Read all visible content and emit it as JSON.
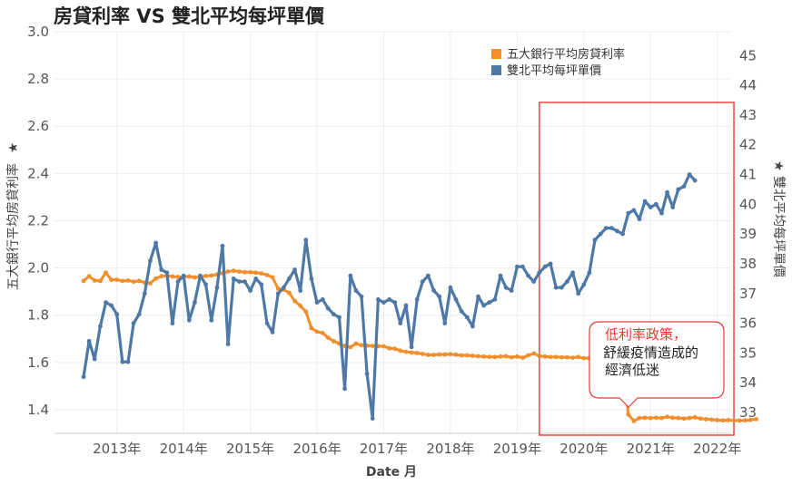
{
  "chart_data": {
    "type": "line",
    "title": "房貸利率 VS 雙北平均每坪單價",
    "xlabel": "Date 月",
    "ylabel_left": "五大銀行平均房貸利率",
    "ylabel_right": "雙北平均每坪單價",
    "ylim_left": [
      1.3,
      3.0
    ],
    "ylim_right": [
      32.3,
      45.8
    ],
    "yticks_left": [
      "3.0",
      "2.8",
      "2.6",
      "2.4",
      "2.2",
      "2.0",
      "1.8",
      "1.6",
      "1.4"
    ],
    "yticks_right": [
      "45",
      "44",
      "43",
      "42",
      "41",
      "40",
      "39",
      "38",
      "37",
      "36",
      "35",
      "34",
      "33"
    ],
    "x_start_month": "2013-01",
    "xticks": [
      {
        "month": "2013-07",
        "label": "2013年"
      },
      {
        "month": "2014-07",
        "label": "2014年"
      },
      {
        "month": "2015-07",
        "label": "2015年"
      },
      {
        "month": "2016-07",
        "label": "2016年"
      },
      {
        "month": "2017-07",
        "label": "2017年"
      },
      {
        "month": "2018-07",
        "label": "2018年"
      },
      {
        "month": "2019-07",
        "label": "2019年"
      },
      {
        "month": "2020-07",
        "label": "2020年"
      },
      {
        "month": "2021-07",
        "label": "2021年"
      },
      {
        "month": "2022-07",
        "label": "2022年"
      }
    ],
    "legend_position": "top-right",
    "grid": true,
    "series": [
      {
        "name": "五大銀行平均房貸利率",
        "axis": "left",
        "color": "#f28e2b",
        "values": [
          1.945,
          1.965,
          1.947,
          1.945,
          1.98,
          1.95,
          1.95,
          1.945,
          1.947,
          1.942,
          1.945,
          1.938,
          1.935,
          1.955,
          1.965,
          1.967,
          1.964,
          1.962,
          1.962,
          1.964,
          1.96,
          1.962,
          1.966,
          1.968,
          1.972,
          1.978,
          1.985,
          1.988,
          1.985,
          1.982,
          1.982,
          1.98,
          1.977,
          1.97,
          1.96,
          1.912,
          1.908,
          1.895,
          1.86,
          1.84,
          1.815,
          1.745,
          1.73,
          1.725,
          1.705,
          1.69,
          1.68,
          1.67,
          1.665,
          1.68,
          1.673,
          1.671,
          1.67,
          1.669,
          1.668,
          1.66,
          1.658,
          1.65,
          1.645,
          1.642,
          1.64,
          1.636,
          1.632,
          1.632,
          1.634,
          1.634,
          1.635,
          1.633,
          1.63,
          1.63,
          1.628,
          1.626,
          1.625,
          1.624,
          1.623,
          1.625,
          1.626,
          1.622,
          1.625,
          1.62,
          1.63,
          1.638,
          1.627,
          1.625,
          1.623,
          1.623,
          1.622,
          1.622,
          1.62,
          1.623,
          1.618,
          1.618,
          1.618,
          1.613,
          1.62,
          1.614,
          1.614,
          1.6,
          1.38,
          1.352,
          1.365,
          1.366,
          1.365,
          1.366,
          1.365,
          1.37,
          1.366,
          1.365,
          1.362,
          1.365,
          1.368,
          1.362,
          1.36,
          1.358,
          1.356,
          1.355,
          1.356,
          1.354,
          1.354,
          1.355,
          1.357,
          1.36
        ]
      },
      {
        "name": "雙北平均每坪單價",
        "axis": "right",
        "color": "#4e79a7",
        "values": [
          34.2,
          35.4,
          34.8,
          35.9,
          36.7,
          36.6,
          36.3,
          34.7,
          34.7,
          36.0,
          36.3,
          37.0,
          38.1,
          38.7,
          37.8,
          37.7,
          36.0,
          37.4,
          37.6,
          36.1,
          36.7,
          37.6,
          37.3,
          36.1,
          37.2,
          38.6,
          35.3,
          37.5,
          37.4,
          37.4,
          37.1,
          37.5,
          37.3,
          36.0,
          35.7,
          37.0,
          37.2,
          37.5,
          37.8,
          37.1,
          38.8,
          37.5,
          36.7,
          36.8,
          36.5,
          36.3,
          36.2,
          33.8,
          37.6,
          37.1,
          36.9,
          34.3,
          32.8,
          36.8,
          36.7,
          36.8,
          36.7,
          36.0,
          36.6,
          35.2,
          36.8,
          37.4,
          37.6,
          37.1,
          36.9,
          36.0,
          37.2,
          36.8,
          36.4,
          36.2,
          35.9,
          36.9,
          36.6,
          36.7,
          36.8,
          37.6,
          37.2,
          37.1,
          37.9,
          37.9,
          37.6,
          37.4,
          37.7,
          37.9,
          38.0,
          37.2,
          37.2,
          37.4,
          37.7,
          37.0,
          37.3,
          37.7,
          38.8,
          39.0,
          39.2,
          39.2,
          39.1,
          39.0,
          39.7,
          39.8,
          39.5,
          40.1,
          39.9,
          40.0,
          39.7,
          40.4,
          39.9,
          40.5,
          40.6,
          41.0,
          40.8
        ]
      }
    ],
    "annotation": {
      "line1": "低利率政策，",
      "line2": "舒緩疫情造成的",
      "line3": "經濟低迷",
      "highlight_color": "#e53935",
      "highlight_range_months": [
        "2019-11",
        "2022-10"
      ]
    }
  }
}
